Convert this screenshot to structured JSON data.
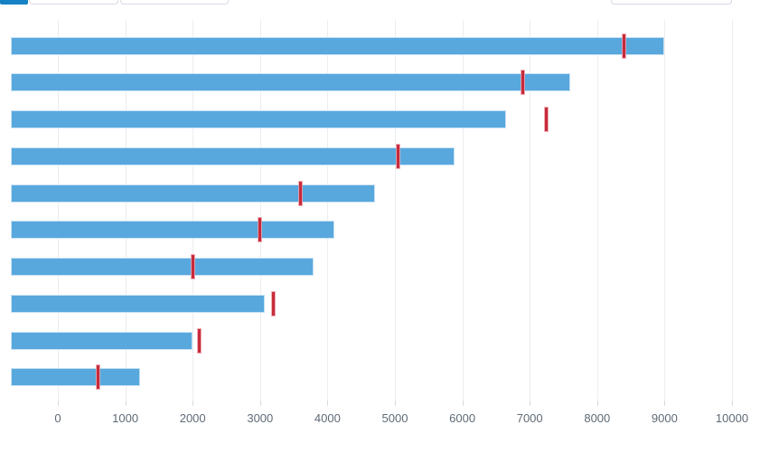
{
  "toolbar": {
    "active_tab_color": "#1482c4",
    "buttons": [
      {
        "name": "toolbar-button-1"
      },
      {
        "name": "toolbar-button-2"
      }
    ],
    "dropdown": {
      "name": "toolbar-dropdown"
    }
  },
  "chart_data": {
    "type": "bar",
    "orientation": "horizontal",
    "title": "",
    "xlabel": "",
    "ylabel": "",
    "xlim": [
      0,
      10000
    ],
    "x_ticks": [
      0,
      1000,
      2000,
      3000,
      4000,
      5000,
      6000,
      7000,
      8000,
      9000,
      10000
    ],
    "grid": true,
    "categories": [
      "",
      "",
      "",
      "",
      "",
      "",
      "",
      "",
      "",
      ""
    ],
    "series": [
      {
        "name": "value",
        "values": [
          9000,
          7600,
          6650,
          5880,
          4700,
          4100,
          3800,
          3070,
          2000,
          1220
        ]
      },
      {
        "name": "threshold",
        "values": [
          8400,
          6900,
          7250,
          5050,
          3600,
          3000,
          2000,
          3200,
          2100,
          600
        ]
      }
    ],
    "bar_color": "#58a8dd",
    "bar_border_color": "#c9e2f5",
    "threshold_color": "#c62b3c",
    "gridline_color": "#ecedf1",
    "tick_label_color": "#5f6a76",
    "layout_hints": {
      "legend": "none",
      "bars_start_at_plot_left_edge": true,
      "threshold_style": "red vertical tick, slightly taller than bar"
    }
  }
}
